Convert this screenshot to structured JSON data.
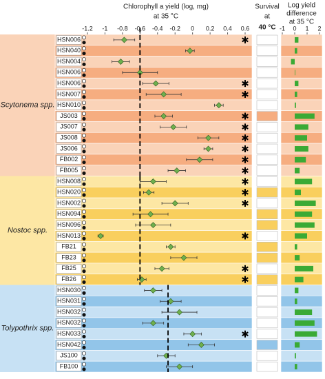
{
  "chart_data": {
    "type": "dot",
    "title": [
      "Chlorophyll a yield (log, mg)",
      "at 35 °C"
    ],
    "survival_title": [
      "Survival",
      "at",
      "40 °C"
    ],
    "difference_title": [
      "Log yield",
      "difference",
      "at 35 °C"
    ],
    "xlim": [
      -1.2,
      0.6
    ],
    "xticks": [
      -1.2,
      -1,
      -0.8,
      -0.6,
      -0.4,
      -0.2,
      0,
      0.2,
      0.4,
      0.6
    ],
    "difference_xlim": [
      -1,
      2
    ],
    "difference_xticks": [
      -1,
      0,
      1,
      2
    ],
    "point_color": "#6fb04e",
    "difference_color": "#3aaa35",
    "groups": [
      {
        "name": "Scytonema spp.",
        "colors": [
          "#fad3b8",
          "#f6ad80"
        ],
        "reference": -0.6,
        "strains": [
          "HSN006",
          "HSN040",
          "HSN004",
          "HSN006",
          "HSN006",
          "HSN007",
          "HSN010",
          "JS003",
          "JS007",
          "JS008",
          "JS006",
          "FB002",
          "FB005"
        ],
        "values": [
          -0.78,
          -0.03,
          -0.82,
          -0.6,
          -0.42,
          -0.33,
          0.3,
          -0.33,
          -0.22,
          0.18,
          0.18,
          0.08,
          -0.18
        ],
        "errors": [
          0.12,
          0.05,
          0.1,
          0.2,
          0.15,
          0.2,
          0.05,
          0.1,
          0.15,
          0.12,
          0.05,
          0.15,
          0.1
        ],
        "significant": [
          true,
          false,
          false,
          false,
          true,
          true,
          false,
          true,
          true,
          true,
          true,
          true,
          true
        ],
        "survival": [
          1,
          1,
          1,
          1,
          1,
          1,
          1,
          0,
          1,
          1,
          1,
          1,
          1
        ],
        "yield_difference": [
          0.3,
          0.2,
          -0.3,
          0.0,
          0.3,
          0.2,
          0.1,
          1.6,
          1.1,
          1.0,
          1.1,
          0.9,
          0.4
        ]
      },
      {
        "name": "Nostoc spp.",
        "colors": [
          "#fde7a4",
          "#f9cf5e"
        ],
        "reference": -0.6,
        "strains": [
          "HSN008",
          "HSN020",
          "HSN002",
          "HSN094",
          "HSN096",
          "HSN013",
          "FB21",
          "FB23",
          "FB25",
          "FB26"
        ],
        "values": [
          -0.45,
          -0.5,
          -0.2,
          -0.48,
          -0.45,
          -1.05,
          -0.25,
          -0.1,
          -0.35,
          -0.58
        ],
        "errors": [
          0.15,
          0.06,
          0.15,
          0.2,
          0.2,
          0.03,
          0.05,
          0.15,
          0.08,
          0.05
        ],
        "significant": [
          true,
          true,
          true,
          false,
          false,
          true,
          false,
          false,
          true,
          true
        ],
        "survival": [
          1,
          0,
          1,
          0,
          0,
          1,
          0,
          0,
          1,
          0
        ],
        "yield_difference": [
          1.4,
          0.5,
          1.7,
          1.4,
          1.6,
          1.0,
          0.2,
          0.4,
          1.5,
          0.7
        ]
      },
      {
        "name": "Tolypothrix spp.",
        "colors": [
          "#c7e1f4",
          "#92c5e9"
        ],
        "reference": -0.28,
        "strains": [
          "HSN030",
          "HSN031",
          "HSN032",
          "HSN032",
          "HSN033",
          "HSN042",
          "JS100",
          "FB100"
        ],
        "values": [
          -0.45,
          -0.25,
          -0.15,
          -0.45,
          0.0,
          0.1,
          -0.3,
          -0.15
        ],
        "errors": [
          0.1,
          0.12,
          0.2,
          0.12,
          0.1,
          0.15,
          0.1,
          0.15
        ],
        "significant": [
          false,
          false,
          false,
          false,
          true,
          false,
          false,
          false
        ],
        "survival": [
          1,
          1,
          1,
          1,
          1,
          0,
          1,
          1
        ],
        "yield_difference": [
          0.3,
          0.2,
          1.4,
          1.6,
          1.8,
          0.4,
          0.1,
          0.2
        ]
      }
    ]
  }
}
